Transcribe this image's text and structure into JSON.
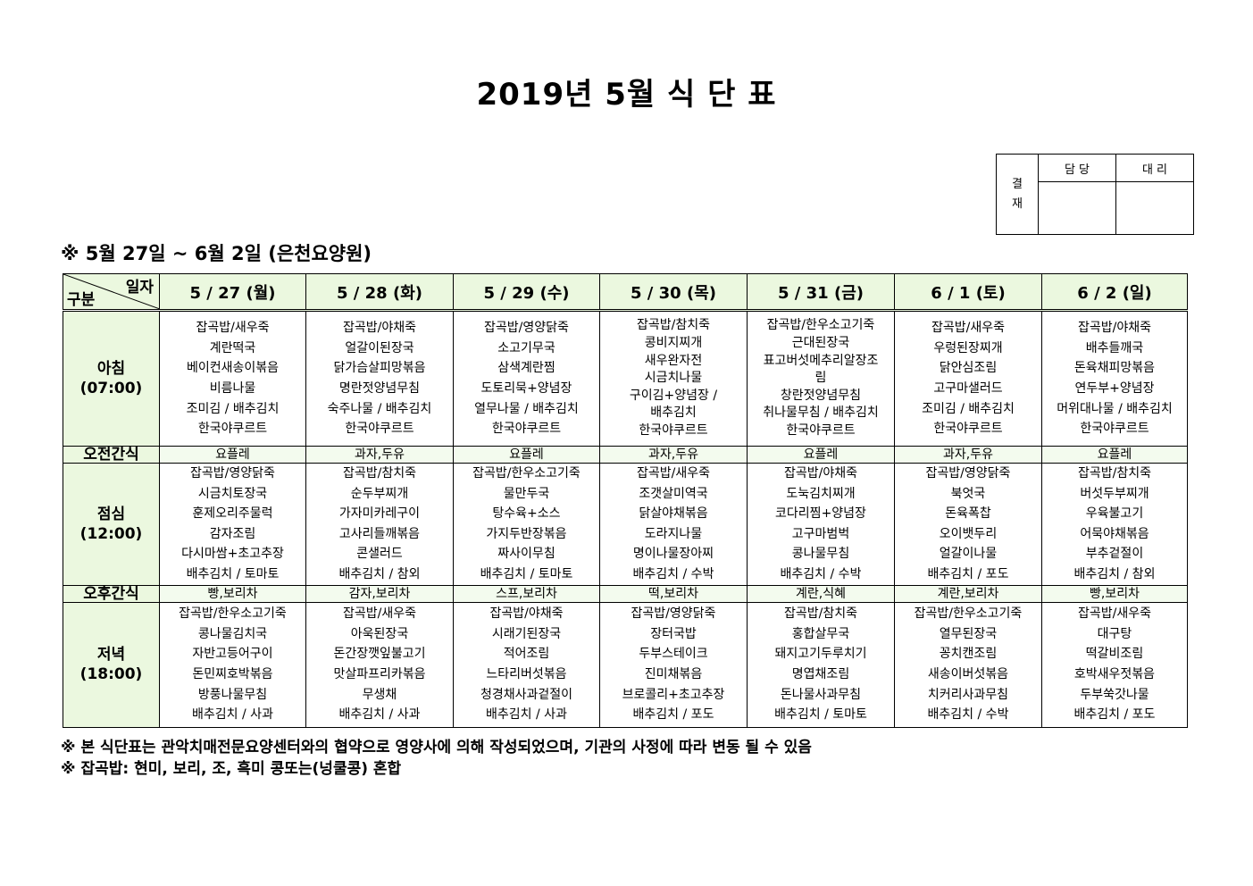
{
  "title": "2019년 5월 식 단 표",
  "approval": {
    "label": "결\n재",
    "col1": "담 당",
    "col2": "대 리"
  },
  "subtitle": "※ 5월 27일 ~ 6월 2일 (은천요양원)",
  "corner": {
    "top": "일자",
    "bottom": "구분"
  },
  "days": [
    "5 / 27 (월)",
    "5 / 28 (화)",
    "5 / 29 (수)",
    "5 / 30 (목)",
    "5 / 31 (금)",
    "6 / 1 (토)",
    "6 / 2 (일)"
  ],
  "rows": {
    "breakfast": {
      "label": "아침",
      "time": "(07:00)",
      "cells": [
        [
          "잡곡밥/새우죽",
          "계란떡국",
          "베이컨새송이볶음",
          "비름나물",
          "조미김 / 배추김치",
          "한국야쿠르트"
        ],
        [
          "잡곡밥/야채죽",
          "얼갈이된장국",
          "닭가슴살피망볶음",
          "명란젓양념무침",
          "숙주나물 / 배추김치",
          "한국야쿠르트"
        ],
        [
          "잡곡밥/영양닭죽",
          "소고기무국",
          "삼색계란찜",
          "도토리묵+양념장",
          "열무나물 / 배추김치",
          "한국야쿠르트"
        ],
        [
          "잡곡밥/참치죽",
          "콩비지찌개",
          "새우완자전",
          "시금치나물",
          "구이김+양념장 /",
          "배추김치",
          "한국야쿠르트"
        ],
        [
          "잡곡밥/한우소고기죽",
          "근대된장국",
          "표고버섯메추리알장조",
          "림",
          "창란젓양념무침",
          "취나물무침 / 배추김치",
          "한국야쿠르트"
        ],
        [
          "잡곡밥/새우죽",
          "우렁된장찌개",
          "닭안심조림",
          "고구마샐러드",
          "조미김 / 배추김치",
          "한국야쿠르트"
        ],
        [
          "잡곡밥/야채죽",
          "배추들깨국",
          "돈육채피망볶음",
          "연두부+양념장",
          "머위대나물 / 배추김치",
          "한국야쿠르트"
        ]
      ]
    },
    "am_snack": {
      "label": "오전간식",
      "cells": [
        "요플레",
        "과자,두유",
        "요플레",
        "과자,두유",
        "요플레",
        "과자,두유",
        "요플레"
      ]
    },
    "lunch": {
      "label": "점심",
      "time": "(12:00)",
      "cells": [
        [
          "잡곡밥/영양닭죽",
          "시금치토장국",
          "훈제오리주물럭",
          "감자조림",
          "다시마쌈+초고추장",
          "배추김치 / 토마토"
        ],
        [
          "잡곡밥/참치죽",
          "순두부찌개",
          "가자미카레구이",
          "고사리들깨볶음",
          "콘샐러드",
          "배추김치 / 참외"
        ],
        [
          "잡곡밥/한우소고기죽",
          "물만두국",
          "탕수육+소스",
          "가지두반장볶음",
          "짜사이무침",
          "배추김치 / 토마토"
        ],
        [
          "잡곡밥/새우죽",
          "조갯살미역국",
          "닭살야채볶음",
          "도라지나물",
          "명이나물장아찌",
          "배추김치 / 수박"
        ],
        [
          "잡곡밥/야채죽",
          "도눅김치찌개",
          "코다리찜+양념장",
          "고구마범벅",
          "콩나물무침",
          "배추김치 / 수박"
        ],
        [
          "잡곡밥/영양닭죽",
          "북엇국",
          "돈육폭찹",
          "오이뱃두리",
          "얼갈이나물",
          "배추김치 / 포도"
        ],
        [
          "잡곡밥/참치죽",
          "버섯두부찌개",
          "우육불고기",
          "어묵야채볶음",
          "부추겉절이",
          "배추김치 / 참외"
        ]
      ]
    },
    "pm_snack": {
      "label": "오후간식",
      "cells": [
        "빵,보리차",
        "감자,보리차",
        "스프,보리차",
        "떡,보리차",
        "계란,식혜",
        "계란,보리차",
        "빵,보리차"
      ]
    },
    "dinner": {
      "label": "저녁",
      "time": "(18:00)",
      "cells": [
        [
          "잡곡밥/한우소고기죽",
          "콩나물김치국",
          "자반고등어구이",
          "돈민찌호박볶음",
          "방풍나물무침",
          "배추김치 / 사과"
        ],
        [
          "잡곡밥/새우죽",
          "아욱된장국",
          "돈간장깻잎불고기",
          "맛살파프리카볶음",
          "무생채",
          "배추김치 / 사과"
        ],
        [
          "잡곡밥/야채죽",
          "시래기된장국",
          "적어조림",
          "느타리버섯볶음",
          "청경채사과겉절이",
          "배추김치 / 사과"
        ],
        [
          "잡곡밥/영양닭죽",
          "장터국밥",
          "두부스테이크",
          "진미채볶음",
          "브로콜리+초고추장",
          "배추김치 / 포도"
        ],
        [
          "잡곡밥/참치죽",
          "홍합살무국",
          "돼지고기두루치기",
          "명엽채조림",
          "돈나물사과무침",
          "배추김치 / 토마토"
        ],
        [
          "잡곡밥/한우소고기죽",
          "열무된장국",
          "꽁치캔조림",
          "새송이버섯볶음",
          "치커리사과무침",
          "배추김치 / 수박"
        ],
        [
          "잡곡밥/새우죽",
          "대구탕",
          "떡갈비조림",
          "호박새우젓볶음",
          "두부쑥갓나물",
          "배추김치 / 포도"
        ]
      ]
    }
  },
  "notes": [
    "※ 본 식단표는 관악치매전문요양센터와의 협약으로 영양사에 의해 작성되었으며, 기관의 사정에 따라 변동 될 수 있음",
    "※ 잡곡밥: 현미, 보리, 조, 흑미 콩또는(넝쿨콩) 혼합"
  ],
  "colors": {
    "header_bg": "#ebf8df",
    "snack_bg": "#f3fbee"
  }
}
